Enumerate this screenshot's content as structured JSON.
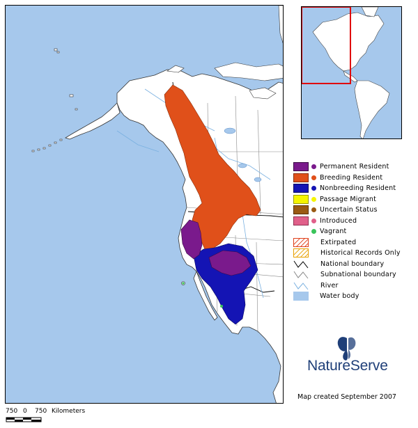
{
  "legend": {
    "items": [
      {
        "label": "Permanent Resident",
        "color": "#7a1a8c",
        "dot": "#7a1a8c",
        "kind": "swatch"
      },
      {
        "label": "Breeding Resident",
        "color": "#e0501a",
        "dot": "#e0501a",
        "kind": "swatch"
      },
      {
        "label": "Nonbreeding Resident",
        "color": "#1414b4",
        "dot": "#1414b4",
        "kind": "swatch"
      },
      {
        "label": "Passage Migrant",
        "color": "#f5f500",
        "dot": "#f5f500",
        "kind": "swatch"
      },
      {
        "label": "Uncertain Status",
        "color": "#9a5a14",
        "dot": "#9a5a14",
        "kind": "swatch"
      },
      {
        "label": "Introduced",
        "color": "#e0608a",
        "dot": "#e0608a",
        "kind": "swatch"
      },
      {
        "label": "Vagrant",
        "color": "#ffffff",
        "dot": "#39c45a",
        "kind": "vagrant"
      },
      {
        "label": "Extirpated",
        "color": "#e0401a",
        "kind": "hatch"
      },
      {
        "label": "Historical Records Only",
        "color": "#e8a000",
        "kind": "hatch"
      },
      {
        "label": "National boundary",
        "color": "#000000",
        "kind": "line"
      },
      {
        "label": "Subnational boundary",
        "color": "#888888",
        "kind": "line"
      },
      {
        "label": "River",
        "color": "#7ab0e0",
        "kind": "line"
      },
      {
        "label": "Water body",
        "color": "#a6c8ec",
        "kind": "water"
      }
    ]
  },
  "brand": {
    "name": "NatureServe",
    "color": "#1f3f78"
  },
  "created": "Map created September 2007",
  "scale": {
    "left": "750",
    "zero": "0",
    "right": "750",
    "unit": "Kilometers"
  },
  "colors": {
    "water": "#a6c8ec",
    "land": "#ffffff",
    "inset_frame": "#e00000"
  }
}
